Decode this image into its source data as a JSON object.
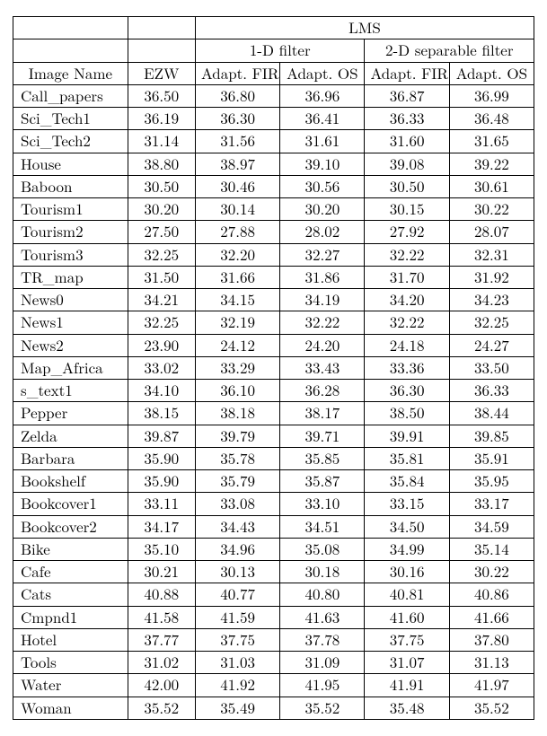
{
  "table": {
    "super_header": "LMS",
    "group_headers": [
      "1-D filter",
      "2-D separable filter"
    ],
    "columns": [
      "Image Name",
      "EZW",
      "Adapt. FIR",
      "Adapt. OS",
      "Adapt. FIR",
      "Adapt. OS"
    ],
    "rows": [
      {
        "name": "Call_papers",
        "ezw": "36.50",
        "a": "36.80",
        "b": "36.96",
        "c": "36.87",
        "d": "36.99"
      },
      {
        "name": "Sci_Tech1",
        "ezw": "36.19",
        "a": "36.30",
        "b": "36.41",
        "c": "36.33",
        "d": "36.48"
      },
      {
        "name": "Sci_Tech2",
        "ezw": "31.14",
        "a": "31.56",
        "b": "31.61",
        "c": "31.60",
        "d": "31.65"
      },
      {
        "name": "House",
        "ezw": "38.80",
        "a": "38.97",
        "b": "39.10",
        "c": "39.08",
        "d": "39.22"
      },
      {
        "name": "Baboon",
        "ezw": "30.50",
        "a": "30.46",
        "b": "30.56",
        "c": "30.50",
        "d": "30.61"
      },
      {
        "name": "Tourism1",
        "ezw": "30.20",
        "a": "30.14",
        "b": "30.20",
        "c": "30.15",
        "d": "30.22"
      },
      {
        "name": "Tourism2",
        "ezw": "27.50",
        "a": "27.88",
        "b": "28.02",
        "c": "27.92",
        "d": "28.07"
      },
      {
        "name": "Tourism3",
        "ezw": "32.25",
        "a": "32.20",
        "b": "32.27",
        "c": "32.22",
        "d": "32.31"
      },
      {
        "name": "TR_map",
        "ezw": "31.50",
        "a": "31.66",
        "b": "31.86",
        "c": "31.70",
        "d": "31.92"
      },
      {
        "name": "News0",
        "ezw": "34.21",
        "a": "34.15",
        "b": "34.19",
        "c": "34.20",
        "d": "34.23"
      },
      {
        "name": "News1",
        "ezw": "32.25",
        "a": "32.19",
        "b": "32.22",
        "c": "32.22",
        "d": "32.25"
      },
      {
        "name": "News2",
        "ezw": "23.90",
        "a": "24.12",
        "b": "24.20",
        "c": "24.18",
        "d": "24.27"
      },
      {
        "name": "Map_Africa",
        "ezw": "33.02",
        "a": "33.29",
        "b": "33.43",
        "c": "33.36",
        "d": "33.50"
      },
      {
        "name": "s_text1",
        "ezw": "34.10",
        "a": "36.10",
        "b": "36.28",
        "c": "36.30",
        "d": "36.33"
      },
      {
        "name": "Pepper",
        "ezw": "38.15",
        "a": "38.18",
        "b": "38.17",
        "c": "38.50",
        "d": "38.44"
      },
      {
        "name": "Zelda",
        "ezw": "39.87",
        "a": "39.79",
        "b": "39.71",
        "c": "39.91",
        "d": "39.85"
      },
      {
        "name": "Barbara",
        "ezw": "35.90",
        "a": "35.78",
        "b": "35.85",
        "c": "35.81",
        "d": "35.91"
      },
      {
        "name": "Bookshelf",
        "ezw": "35.90",
        "a": "35.79",
        "b": "35.87",
        "c": "35.84",
        "d": "35.95"
      },
      {
        "name": "Bookcover1",
        "ezw": "33.11",
        "a": "33.08",
        "b": "33.10",
        "c": "33.15",
        "d": "33.17"
      },
      {
        "name": "Bookcover2",
        "ezw": "34.17",
        "a": "34.43",
        "b": "34.51",
        "c": "34.50",
        "d": "34.59"
      },
      {
        "name": "Bike",
        "ezw": "35.10",
        "a": "34.96",
        "b": "35.08",
        "c": "34.99",
        "d": "35.14"
      },
      {
        "name": "Cafe",
        "ezw": "30.21",
        "a": "30.13",
        "b": "30.18",
        "c": "30.16",
        "d": "30.22"
      },
      {
        "name": "Cats",
        "ezw": "40.88",
        "a": "40.77",
        "b": "40.80",
        "c": "40.81",
        "d": "40.86"
      },
      {
        "name": "Cmpnd1",
        "ezw": "41.58",
        "a": "41.59",
        "b": "41.63",
        "c": "41.60",
        "d": "41.66"
      },
      {
        "name": "Hotel",
        "ezw": "37.77",
        "a": "37.75",
        "b": "37.78",
        "c": "37.75",
        "d": "37.80"
      },
      {
        "name": "Tools",
        "ezw": "31.02",
        "a": "31.03",
        "b": "31.09",
        "c": "31.07",
        "d": "31.13"
      },
      {
        "name": "Water",
        "ezw": "42.00",
        "a": "41.92",
        "b": "41.95",
        "c": "41.91",
        "d": "41.97"
      },
      {
        "name": "Woman",
        "ezw": "35.52",
        "a": "35.49",
        "b": "35.52",
        "c": "35.48",
        "d": "35.52"
      }
    ],
    "style": {
      "font_family": "Computer Modern / Latin Modern Roman",
      "font_size_pt": 12,
      "border_color": "#000000",
      "background_color": "#ffffff",
      "text_color": "#000000",
      "col_widths_pct": [
        22,
        13,
        16.25,
        16.25,
        16.25,
        16.25
      ],
      "cell_align": {
        "name": "left",
        "numbers": "center"
      }
    }
  }
}
